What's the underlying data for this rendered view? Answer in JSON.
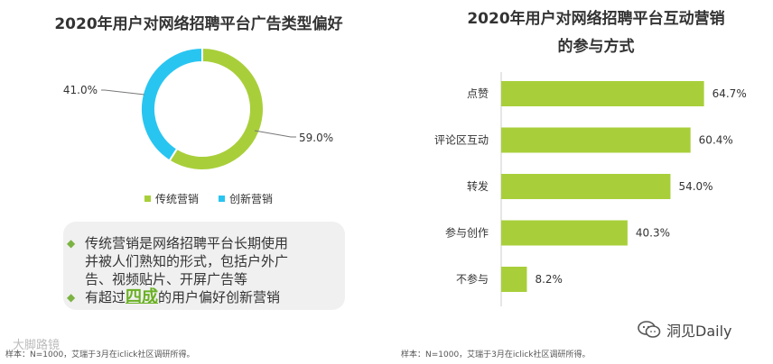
{
  "left": {
    "title": "2020年用户对网络招聘平台广告类型偏好",
    "legend": [
      {
        "label": "传统营销",
        "color": "#a8cf3a"
      },
      {
        "label": "创新营销",
        "color": "#29c5f1"
      }
    ],
    "note": {
      "line1": "传统营销是网络招聘平台长期使用",
      "line2": "并被人们熟知的形式，包括户外广",
      "line3": "告、视频贴片、开屏广告等",
      "line4_pre": "有超过",
      "line4_hl": "四成",
      "line4_post": "的用户偏好创新营销"
    },
    "source": "样本：N=1000，艾瑞于3月在iclick社区调研所得。"
  },
  "right": {
    "title_line1": "2020年用户对网络招聘平台互动营销",
    "title_line2": "的参与方式",
    "source": "样本：N=1000，艾瑞于3月在iclick社区调研所得。"
  },
  "watermarks": {
    "left": "大脚路镜",
    "right": "洞见Daily"
  },
  "chart_data": [
    {
      "type": "pie",
      "title": "2020年用户对网络招聘平台广告类型偏好",
      "categories": [
        "传统营销",
        "创新营销"
      ],
      "values": [
        59.0,
        41.0
      ],
      "labels": [
        "59.0%",
        "41.0%"
      ],
      "colors": [
        "#a8cf3a",
        "#29c5f1"
      ],
      "donut": true,
      "legend": "bottom"
    },
    {
      "type": "bar",
      "orientation": "horizontal",
      "title": "2020年用户对网络招聘平台互动营销的参与方式",
      "categories": [
        "点赞",
        "评论区互动",
        "转发",
        "参与创作",
        "不参与"
      ],
      "values": [
        64.7,
        60.4,
        54.0,
        40.3,
        8.2
      ],
      "labels": [
        "64.7%",
        "60.4%",
        "54.0%",
        "40.3%",
        "8.2%"
      ],
      "color": "#a8cf3a",
      "xlim": [
        0,
        70
      ],
      "grid": false
    }
  ]
}
